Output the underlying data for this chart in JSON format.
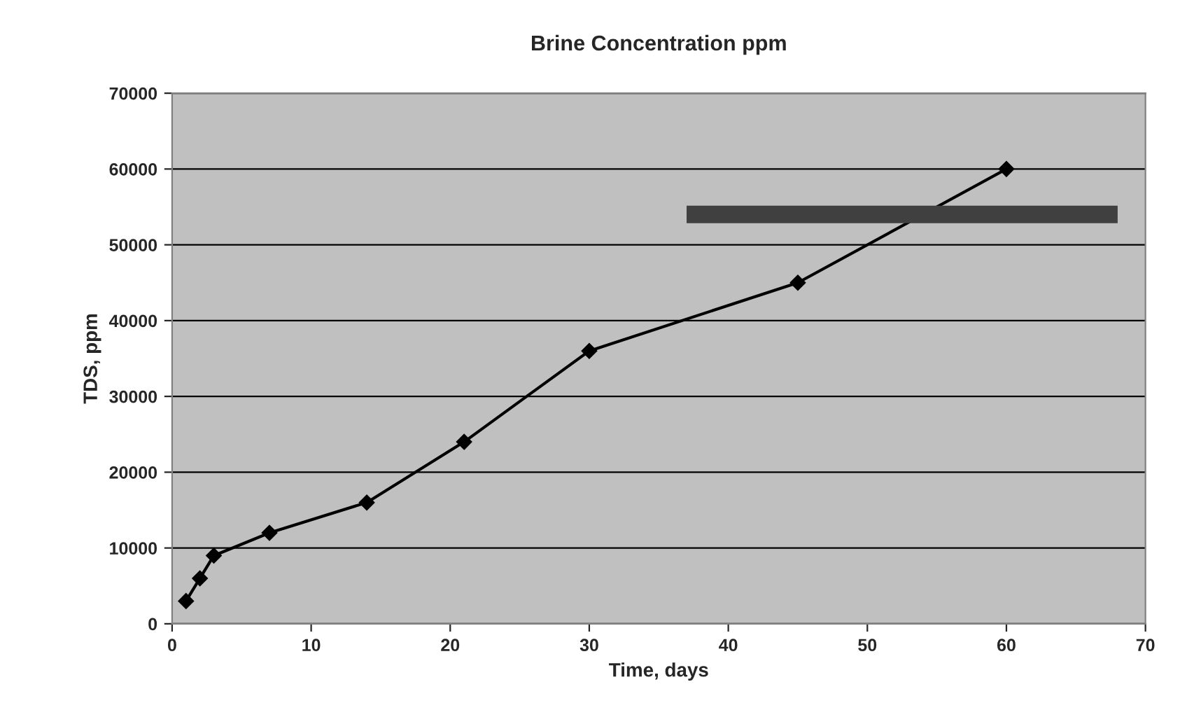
{
  "chart_data": {
    "type": "line",
    "title": "Brine Concentration ppm",
    "xlabel": "Time, days",
    "ylabel": "TDS, ppm",
    "series": [
      {
        "color": "#000000",
        "marker": "diamond",
        "x": [
          1,
          2,
          3,
          7,
          14,
          21,
          30,
          45,
          60
        ],
        "values": [
          3000,
          6000,
          9000,
          12000,
          16000,
          24000,
          36000,
          45000,
          60000
        ]
      },
      {
        "color": "#404040",
        "marker": "none",
        "x": [
          37,
          68
        ],
        "values": [
          54000,
          54000
        ]
      }
    ],
    "xlim": [
      0,
      70
    ],
    "xticks": [
      0,
      10,
      20,
      30,
      40,
      50,
      60,
      70
    ],
    "ylim": [
      0,
      70000
    ],
    "yticks": [
      0,
      10000,
      20000,
      30000,
      40000,
      50000,
      60000,
      70000
    ],
    "grid": "y",
    "legend": false,
    "line_style": "solid"
  }
}
